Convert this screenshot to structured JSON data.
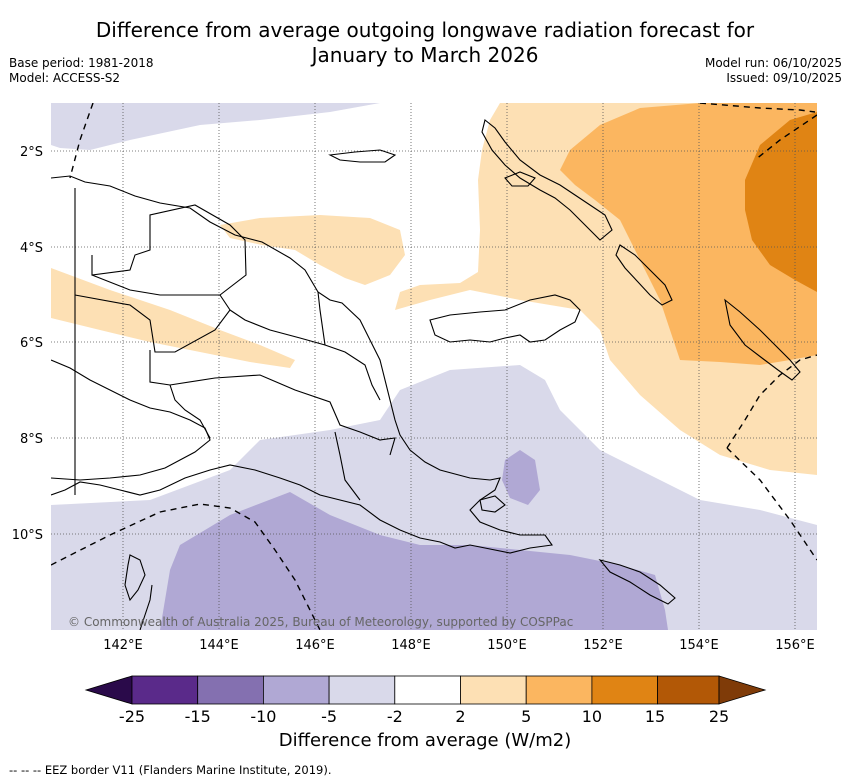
{
  "header": {
    "title_line1": "Difference from average outgoing longwave radiation forecast for",
    "title_line2": "January to March 2026",
    "base_period": "Base period: 1981-2018",
    "model": "Model: ACCESS-S2",
    "model_run": "Model run: 06/10/2025",
    "issued": "Issued: 09/10/2025"
  },
  "map": {
    "lon_labels": [
      "142°E",
      "144°E",
      "146°E",
      "148°E",
      "150°E",
      "152°E",
      "154°E",
      "156°E"
    ],
    "lat_labels": [
      "2°S",
      "4°S",
      "6°S",
      "8°S",
      "10°S"
    ],
    "copyright": "© Commonwealth of Australia 2025, Bureau of Meteorology, supported by COSPPac",
    "category_colors": {
      "neg25": "#2a0a4a",
      "neg15_25": "#5a2a8a",
      "neg10_15": "#8470b0",
      "neg5_10": "#b0a8d4",
      "neg2_5": "#d9d9ea",
      "neutral": "#ffffff",
      "pos2_5": "#fde0b4",
      "pos5_10": "#fbb660",
      "pos10_15": "#e08414",
      "pos15_25": "#b25806",
      "pos25": "#7f3b08"
    }
  },
  "colorbar": {
    "tick_labels": [
      "-25",
      "-15",
      "-10",
      "-5",
      "-2",
      "2",
      "5",
      "10",
      "15",
      "25"
    ],
    "title": "Difference from average (W/m2)"
  },
  "footer": {
    "eez_note": "--  --  -- EEZ border V11 (Flanders Marine Institute, 2019)."
  }
}
